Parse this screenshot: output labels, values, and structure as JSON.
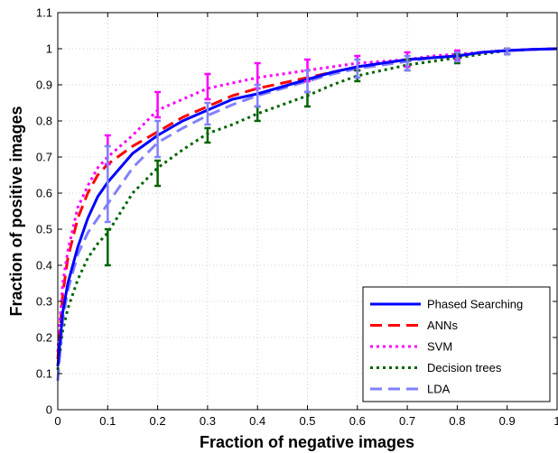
{
  "chart_data": {
    "type": "line",
    "xlabel": "Fraction of negative images",
    "ylabel": "Fraction of positive images",
    "xlim": [
      0,
      1
    ],
    "ylim": [
      0,
      1.1
    ],
    "x_ticks": [
      "0",
      "0.1",
      "0.2",
      "0.3",
      "0.4",
      "0.5",
      "0.6",
      "0.7",
      "0.8",
      "0.9",
      "1"
    ],
    "y_ticks": [
      "0",
      "0.1",
      "0.2",
      "0.3",
      "0.4",
      "0.5",
      "0.6",
      "0.7",
      "0.8",
      "0.9",
      "1",
      "1.1"
    ],
    "grid": true,
    "legend_position": "bottom-right",
    "series": [
      {
        "name": "Phased Searching",
        "color": "#0000ff",
        "style": "solid",
        "x": [
          0,
          0.01,
          0.02,
          0.04,
          0.06,
          0.08,
          0.1,
          0.15,
          0.2,
          0.25,
          0.3,
          0.35,
          0.4,
          0.45,
          0.5,
          0.55,
          0.6,
          0.65,
          0.7,
          0.75,
          0.8,
          0.85,
          0.9,
          0.95,
          1.0
        ],
        "y": [
          0.12,
          0.27,
          0.35,
          0.45,
          0.53,
          0.59,
          0.63,
          0.71,
          0.76,
          0.8,
          0.83,
          0.86,
          0.875,
          0.895,
          0.915,
          0.935,
          0.95,
          0.96,
          0.97,
          0.975,
          0.98,
          0.99,
          0.995,
          0.998,
          1.0
        ],
        "error_bars": []
      },
      {
        "name": "ANNs",
        "color": "#ff0000",
        "style": "dashed",
        "x": [
          0,
          0.01,
          0.02,
          0.04,
          0.06,
          0.08,
          0.1,
          0.15,
          0.2,
          0.25,
          0.3,
          0.35,
          0.4,
          0.45,
          0.5,
          0.55,
          0.6,
          0.65,
          0.7,
          0.75,
          0.8,
          0.85,
          0.9,
          0.95,
          1.0
        ],
        "y": [
          0.14,
          0.32,
          0.42,
          0.53,
          0.6,
          0.65,
          0.68,
          0.73,
          0.77,
          0.81,
          0.84,
          0.87,
          0.89,
          0.905,
          0.92,
          0.935,
          0.95,
          0.96,
          0.97,
          0.975,
          0.98,
          0.99,
          0.995,
          0.998,
          1.0
        ],
        "error_bars": []
      },
      {
        "name": "SVM",
        "color": "#ff00ff",
        "style": "dotted",
        "x": [
          0,
          0.01,
          0.02,
          0.04,
          0.06,
          0.08,
          0.1,
          0.15,
          0.2,
          0.25,
          0.3,
          0.35,
          0.4,
          0.45,
          0.5,
          0.55,
          0.6,
          0.65,
          0.7,
          0.75,
          0.8,
          0.85,
          0.9,
          0.95,
          1.0
        ],
        "y": [
          0.16,
          0.35,
          0.44,
          0.56,
          0.62,
          0.67,
          0.7,
          0.76,
          0.83,
          0.86,
          0.89,
          0.905,
          0.92,
          0.93,
          0.94,
          0.95,
          0.96,
          0.965,
          0.97,
          0.98,
          0.985,
          0.99,
          0.995,
          0.998,
          1.0
        ],
        "error_bars": [
          {
            "x": 0.1,
            "low": 0.68,
            "high": 0.76
          },
          {
            "x": 0.2,
            "low": 0.81,
            "high": 0.88
          },
          {
            "x": 0.3,
            "low": 0.86,
            "high": 0.93
          },
          {
            "x": 0.4,
            "low": 0.89,
            "high": 0.96
          },
          {
            "x": 0.5,
            "low": 0.91,
            "high": 0.97
          },
          {
            "x": 0.6,
            "low": 0.94,
            "high": 0.98
          },
          {
            "x": 0.7,
            "low": 0.95,
            "high": 0.99
          },
          {
            "x": 0.8,
            "low": 0.97,
            "high": 0.995
          },
          {
            "x": 0.9,
            "low": 0.985,
            "high": 1.0
          }
        ]
      },
      {
        "name": "Decision trees",
        "color": "#006400",
        "style": "dotted",
        "x": [
          0,
          0.01,
          0.02,
          0.04,
          0.06,
          0.08,
          0.1,
          0.15,
          0.2,
          0.25,
          0.3,
          0.35,
          0.4,
          0.45,
          0.5,
          0.55,
          0.6,
          0.65,
          0.7,
          0.75,
          0.8,
          0.85,
          0.9,
          0.95,
          1.0
        ],
        "y": [
          0.11,
          0.22,
          0.28,
          0.36,
          0.42,
          0.46,
          0.49,
          0.6,
          0.67,
          0.72,
          0.765,
          0.79,
          0.82,
          0.845,
          0.87,
          0.9,
          0.925,
          0.94,
          0.955,
          0.965,
          0.975,
          0.985,
          0.995,
          0.998,
          1.0
        ],
        "error_bars": [
          {
            "x": 0.1,
            "low": 0.4,
            "high": 0.5
          },
          {
            "x": 0.2,
            "low": 0.62,
            "high": 0.69
          },
          {
            "x": 0.3,
            "low": 0.74,
            "high": 0.78
          },
          {
            "x": 0.4,
            "low": 0.8,
            "high": 0.84
          },
          {
            "x": 0.5,
            "low": 0.84,
            "high": 0.88
          },
          {
            "x": 0.6,
            "low": 0.91,
            "high": 0.94
          },
          {
            "x": 0.7,
            "low": 0.94,
            "high": 0.97
          },
          {
            "x": 0.8,
            "low": 0.96,
            "high": 0.985
          },
          {
            "x": 0.9,
            "low": 0.985,
            "high": 1.0
          }
        ]
      },
      {
        "name": "LDA",
        "color": "#8080ff",
        "style": "dashed",
        "x": [
          0,
          0.01,
          0.02,
          0.04,
          0.06,
          0.08,
          0.1,
          0.15,
          0.2,
          0.25,
          0.3,
          0.35,
          0.4,
          0.45,
          0.5,
          0.55,
          0.6,
          0.65,
          0.7,
          0.75,
          0.8,
          0.85,
          0.9,
          0.95,
          1.0
        ],
        "y": [
          0.08,
          0.25,
          0.33,
          0.43,
          0.49,
          0.53,
          0.57,
          0.67,
          0.74,
          0.78,
          0.815,
          0.845,
          0.87,
          0.89,
          0.91,
          0.93,
          0.945,
          0.955,
          0.965,
          0.975,
          0.98,
          0.99,
          0.995,
          0.998,
          1.0
        ],
        "error_bars": [
          {
            "x": 0.1,
            "low": 0.52,
            "high": 0.73
          },
          {
            "x": 0.2,
            "low": 0.7,
            "high": 0.8
          },
          {
            "x": 0.3,
            "low": 0.79,
            "high": 0.85
          },
          {
            "x": 0.4,
            "low": 0.84,
            "high": 0.9
          },
          {
            "x": 0.5,
            "low": 0.88,
            "high": 0.94
          },
          {
            "x": 0.6,
            "low": 0.92,
            "high": 0.97
          },
          {
            "x": 0.7,
            "low": 0.94,
            "high": 0.98
          },
          {
            "x": 0.8,
            "low": 0.965,
            "high": 0.99
          },
          {
            "x": 0.9,
            "low": 0.985,
            "high": 1.0
          }
        ]
      }
    ]
  }
}
